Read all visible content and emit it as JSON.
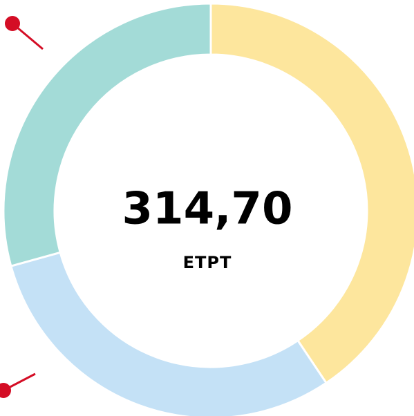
{
  "chart_data": {
    "type": "donut",
    "center_value": "314,70",
    "center_label": "ETPT",
    "categories": [
      null,
      null,
      null
    ],
    "values": [
      40.6,
      30.1,
      29.3
    ],
    "colors": [
      "#fde69d",
      "#c4e1f6",
      "#a3dbd7"
    ]
  }
}
